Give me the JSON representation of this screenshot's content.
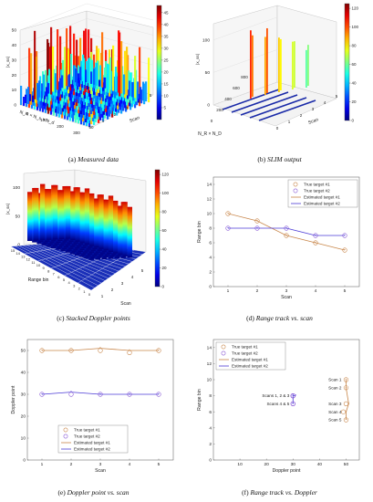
{
  "captions": {
    "a": {
      "tag": "(a)",
      "text": "Measured data"
    },
    "b": {
      "tag": "(b)",
      "text": "SLIM output"
    },
    "c": {
      "tag": "(c)",
      "text": "Stacked Doppler points"
    },
    "d": {
      "tag": "(d)",
      "text": "Range track vs. scan"
    },
    "e": {
      "tag": "(e)",
      "text": "Doppler point vs. scan"
    },
    "f": {
      "tag": "(f)",
      "text": "Range track vs. Doppler"
    }
  },
  "colors": {
    "target1": "#c8864a",
    "target2": "#8a5ad6",
    "est1": "#c8864a",
    "est2": "#4b3bd6"
  },
  "chart_data": [
    {
      "id": "a",
      "type": "surface3d",
      "zticks": [
        "0",
        "10",
        "20",
        "30",
        "40",
        "50"
      ],
      "zlabel": "|x_ss|",
      "xlabel_left": "N_R × N_s × N_d",
      "xticks_left": [
        "0",
        "100",
        "200",
        "300"
      ],
      "scan_label": "Scan",
      "scan_ticks": [
        "50",
        "1",
        "2",
        "3",
        "4",
        "5"
      ],
      "colorbar": {
        "ticks": [
          "5",
          "10",
          "15",
          "20",
          "25",
          "30",
          "35",
          "40",
          "45"
        ],
        "range": [
          0,
          48
        ]
      }
    },
    {
      "id": "b",
      "type": "surface3d",
      "zticks": [
        "0",
        "50",
        "100"
      ],
      "zlabel": "|x_ss|",
      "xlabel_left": "N_R × N_D",
      "xticks_left": [
        "0",
        "200",
        "400",
        "600",
        "800"
      ],
      "scan_label": "Scan",
      "scan_ticks": [
        "0",
        "1",
        "2",
        "3",
        "4",
        "5"
      ],
      "colorbar": {
        "ticks": [
          "0",
          "20",
          "40",
          "60",
          "80",
          "100",
          "120"
        ],
        "range": [
          0,
          125
        ]
      }
    },
    {
      "id": "c",
      "type": "surface3d",
      "zticks": [
        "0",
        "50",
        "100"
      ],
      "zlabel": "|x_ss|",
      "range_label": "Range bin",
      "range_ticks": [
        "15",
        "14",
        "13",
        "12",
        "11",
        "10",
        "9",
        "8",
        "7",
        "6",
        "5",
        "4",
        "3",
        "2",
        "1",
        "0"
      ],
      "scan_label": "Scan",
      "scan_ticks": [
        "1",
        "2",
        "3",
        "4",
        "5"
      ],
      "colorbar": {
        "ticks": [
          "0",
          "20",
          "40",
          "60",
          "80",
          "100",
          "120"
        ],
        "range": [
          0,
          125
        ]
      }
    },
    {
      "id": "d",
      "type": "line",
      "xlabel": "Scan",
      "ylabel": "Range bin",
      "xlim": [
        0.5,
        5.5
      ],
      "ylim": [
        0,
        15
      ],
      "xticks": [
        1,
        2,
        3,
        4,
        5
      ],
      "yticks": [
        0,
        2,
        4,
        6,
        8,
        10,
        12,
        14
      ],
      "legend": [
        "True target #1",
        "True target #2",
        "Estimated target #1",
        "Estimated target #2"
      ],
      "legend_position": "top-right",
      "true1": {
        "x": [
          1,
          2,
          3,
          4,
          5
        ],
        "y": [
          10,
          9,
          7,
          6,
          5
        ]
      },
      "true2": {
        "x": [
          1,
          2,
          3,
          4,
          5
        ],
        "y": [
          8,
          8,
          8,
          7,
          7
        ]
      },
      "est1": {
        "x": [
          1,
          2,
          3,
          4,
          5
        ],
        "y": [
          10,
          9,
          7,
          6,
          5
        ]
      },
      "est2": {
        "x": [
          1,
          2,
          3,
          4,
          5
        ],
        "y": [
          8,
          8,
          8,
          7,
          7
        ]
      }
    },
    {
      "id": "e",
      "type": "line",
      "xlabel": "Scan",
      "ylabel": "Doppler point",
      "xlim": [
        0.5,
        5.5
      ],
      "ylim": [
        0,
        55
      ],
      "xticks": [
        1,
        2,
        3,
        4,
        5
      ],
      "yticks": [
        0,
        10,
        20,
        30,
        40,
        50
      ],
      "legend": [
        "True target #1",
        "True target #2",
        "Estimated target #1",
        "Estimated target #2"
      ],
      "legend_position": "bottom-right",
      "true1": {
        "x": [
          1,
          2,
          3,
          4,
          5
        ],
        "y": [
          50,
          50,
          50,
          49,
          50
        ]
      },
      "true2": {
        "x": [
          1,
          2,
          3,
          4,
          5
        ],
        "y": [
          30,
          30,
          30,
          30,
          30
        ]
      },
      "est1": {
        "x": [
          1,
          2,
          3,
          4,
          5
        ],
        "y": [
          50,
          50,
          51,
          50,
          50
        ]
      },
      "est2": {
        "x": [
          1,
          2,
          3,
          4,
          5
        ],
        "y": [
          30,
          31,
          30,
          30,
          30
        ]
      }
    },
    {
      "id": "f",
      "type": "scatter",
      "xlabel": "Doppler point",
      "ylabel": "Range bin",
      "xlim": [
        0,
        55
      ],
      "ylim": [
        0,
        15
      ],
      "xticks": [
        10,
        20,
        30,
        40,
        50
      ],
      "yticks": [
        0,
        2,
        4,
        6,
        8,
        10,
        12,
        14
      ],
      "legend": [
        "True target #1",
        "True target #2",
        "Estimated target #1",
        "Estimated target #2"
      ],
      "legend_position": "top-left",
      "true1": {
        "x": [
          50,
          50,
          50,
          49,
          50
        ],
        "y": [
          10,
          9,
          7,
          6,
          5
        ]
      },
      "true2": {
        "x": [
          30,
          30,
          30,
          30,
          30
        ],
        "y": [
          8,
          8,
          8,
          7,
          7
        ]
      },
      "est1": {
        "x": [
          50,
          50,
          51,
          50,
          50
        ],
        "y": [
          10,
          9,
          7,
          6,
          5
        ]
      },
      "est2": {
        "x": [
          30,
          31,
          30,
          30,
          30
        ],
        "y": [
          8,
          8,
          8,
          7,
          7
        ]
      },
      "annotations": [
        {
          "text": "Scan 1",
          "x": 50,
          "y": 10
        },
        {
          "text": "Scan 2",
          "x": 50,
          "y": 9
        },
        {
          "text": "Scans 1, 2 & 3",
          "x": 30,
          "y": 8
        },
        {
          "text": "Scan 3",
          "x": 50,
          "y": 7
        },
        {
          "text": "Scans 4 & 5",
          "x": 30,
          "y": 7
        },
        {
          "text": "Scan 4",
          "x": 50,
          "y": 6
        },
        {
          "text": "Scan 5",
          "x": 50,
          "y": 5
        }
      ]
    }
  ]
}
